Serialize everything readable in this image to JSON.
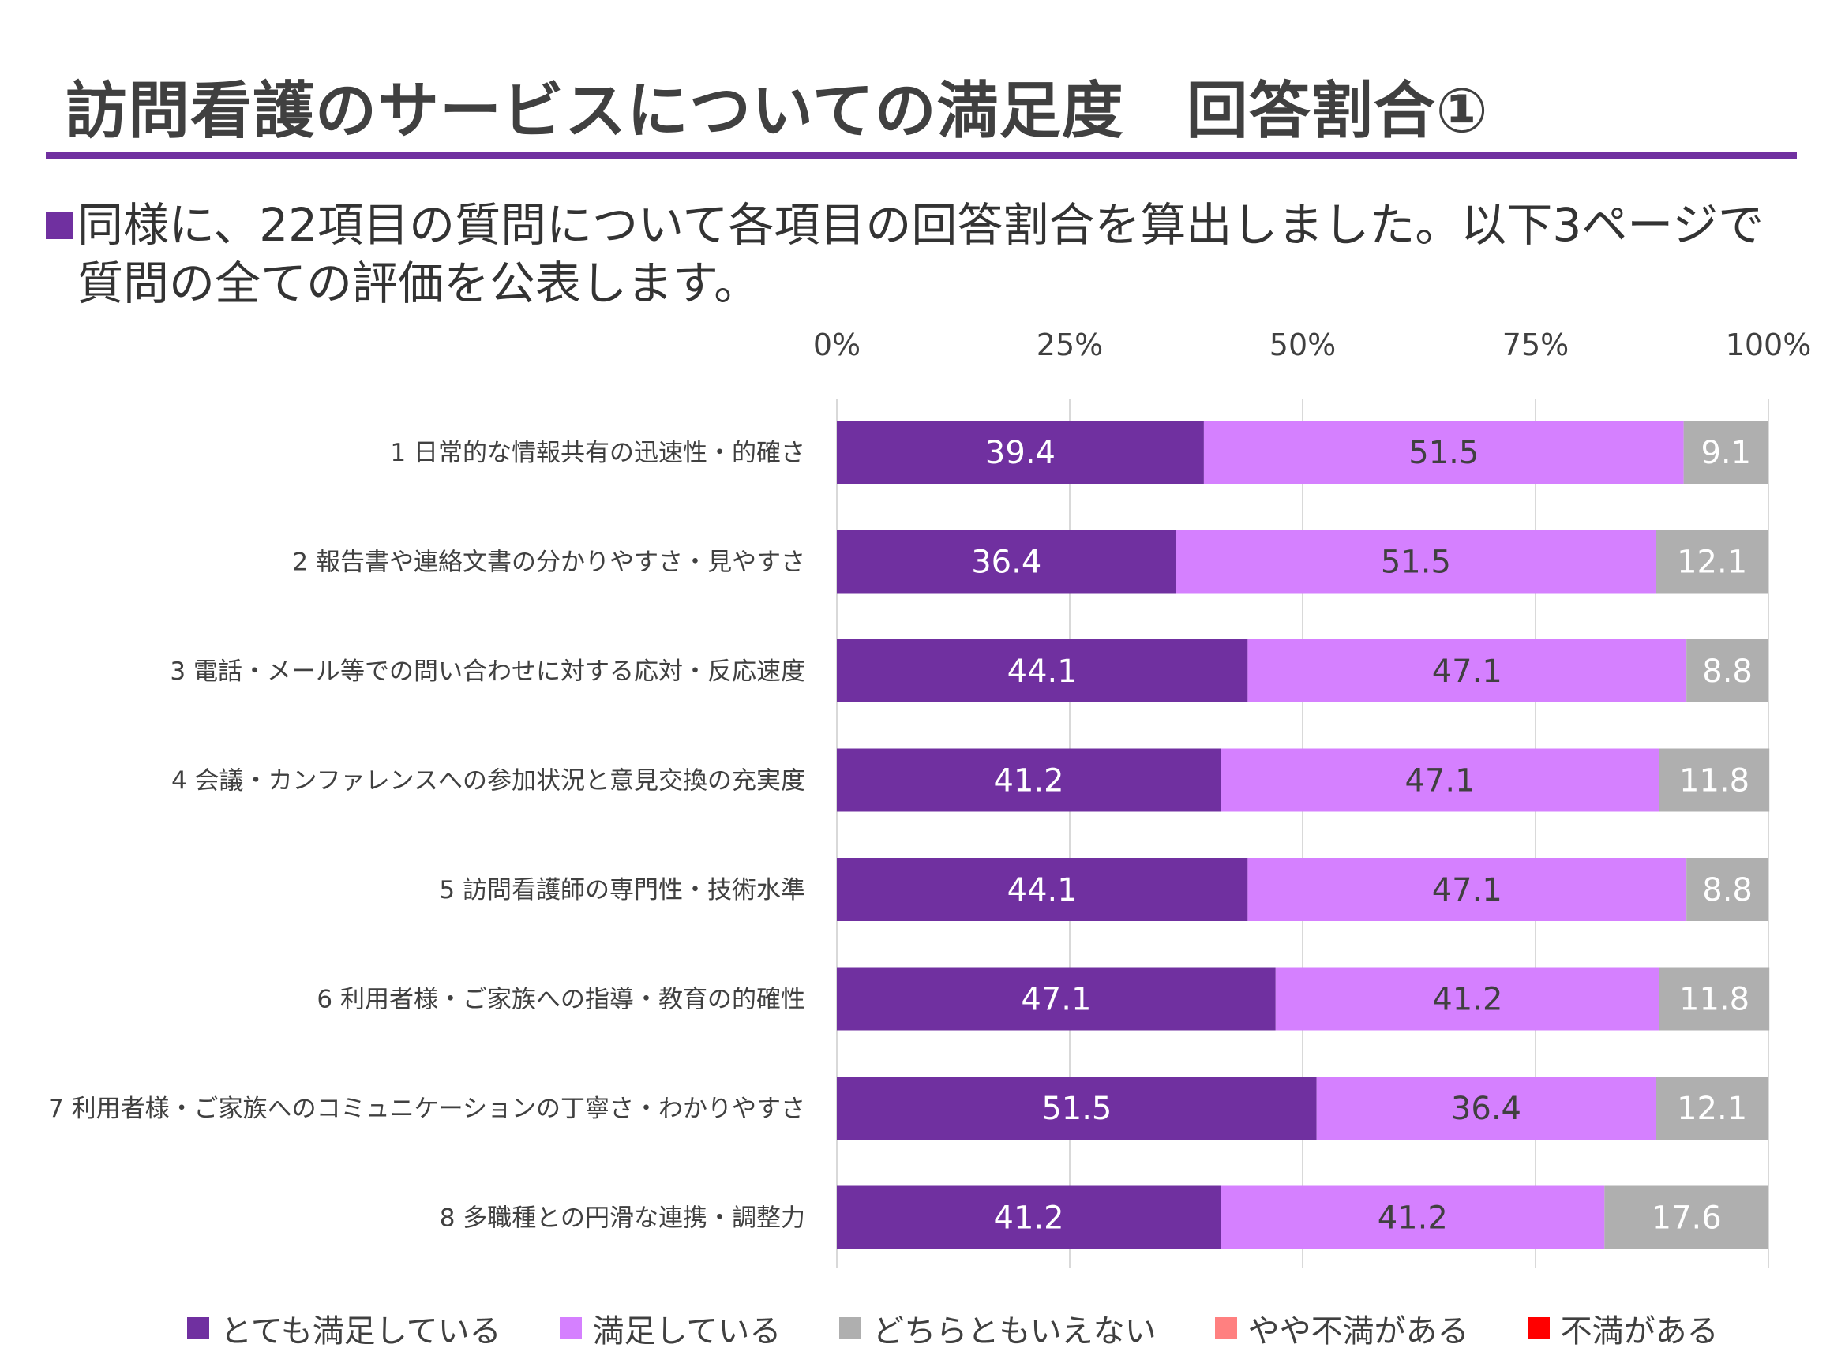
{
  "title": "訪問看護のサービスについての満足度　回答割合①",
  "intro": {
    "line1": "同様に、22項目の質問について各項目の回答割合を算出しました。以下3ページで",
    "line2": "質問の全ての評価を公表します。"
  },
  "chart_data": {
    "type": "bar",
    "orientation": "horizontal",
    "stacked": true,
    "percent_scale": true,
    "xlim": [
      0,
      100
    ],
    "x_ticks": [
      "0%",
      "25%",
      "50%",
      "75%",
      "100%"
    ],
    "x_tick_values": [
      0,
      25,
      50,
      75,
      100
    ],
    "grid": true,
    "legend_position": "bottom",
    "categories": [
      "1 日常的な情報共有の迅速性・的確さ",
      "2 報告書や連絡文書の分かりやすさ・見やすさ",
      "3 電話・メール等での問い合わせに対する応対・反応速度",
      "4 会議・カンファレンスへの参加状況と意見交換の充実度",
      "5 訪問看護師の専門性・技術水準",
      "6 利用者様・ご家族への指導・教育の的確性",
      "7 利用者様・ご家族へのコミュニケーションの丁寧さ・わかりやすさ",
      "8 多職種との円滑な連携・調整力"
    ],
    "series": [
      {
        "name": "とても満足している",
        "color": "#7030A0",
        "label_color": "#ffffff",
        "values": [
          39.4,
          36.4,
          44.1,
          41.2,
          44.1,
          47.1,
          51.5,
          41.2
        ]
      },
      {
        "name": "満足している",
        "color": "#D580FF",
        "label_color": "#404040",
        "values": [
          51.5,
          51.5,
          47.1,
          47.1,
          47.1,
          41.2,
          36.4,
          41.2
        ]
      },
      {
        "name": "どちらともいえない",
        "color": "#AFAFAF",
        "label_color": "#ffffff",
        "values": [
          9.1,
          12.1,
          8.8,
          11.8,
          8.8,
          11.8,
          12.1,
          17.6
        ]
      },
      {
        "name": "やや不満がある",
        "color": "#FF8080",
        "label_color": "#ffffff",
        "values": [
          0,
          0,
          0,
          0,
          0,
          0,
          0,
          0
        ]
      },
      {
        "name": "不満がある",
        "color": "#FF0000",
        "label_color": "#ffffff",
        "values": [
          0,
          0,
          0,
          0,
          0,
          0,
          0,
          0
        ]
      }
    ]
  }
}
